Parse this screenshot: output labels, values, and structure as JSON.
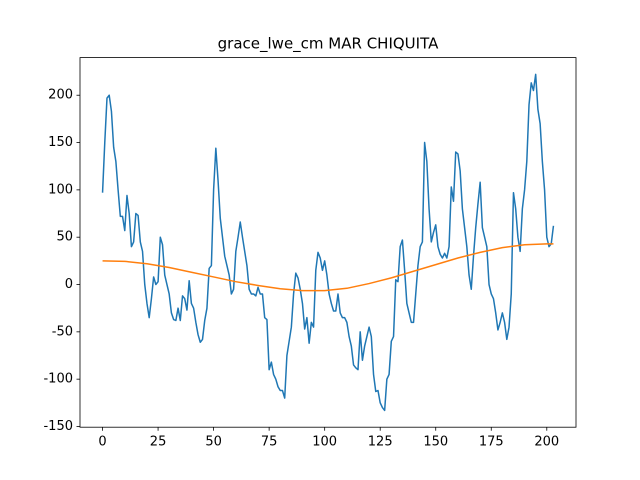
{
  "chart_data": {
    "type": "line",
    "title": "grace_lwe_cm MAR CHIQUITA",
    "xlim": [
      -10.15,
      213.15
    ],
    "ylim": [
      -150.75,
      239.75
    ],
    "xticks": [
      0,
      25,
      50,
      75,
      100,
      125,
      150,
      175,
      200
    ],
    "yticks": [
      -150,
      -100,
      -50,
      0,
      50,
      100,
      150,
      200
    ],
    "grid": false,
    "series": [
      {
        "color": "#1f77b4",
        "x": [
          0,
          1,
          2,
          3,
          4,
          5,
          6,
          7,
          8,
          9,
          10,
          11,
          12,
          13,
          14,
          15,
          16,
          17,
          18,
          19,
          20,
          21,
          22,
          23,
          24,
          25,
          26,
          27,
          28,
          29,
          30,
          31,
          32,
          33,
          34,
          35,
          36,
          37,
          38,
          39,
          40,
          41,
          42,
          43,
          44,
          45,
          46,
          47,
          48,
          49,
          50,
          51,
          52,
          53,
          54,
          55,
          56,
          57,
          58,
          59,
          60,
          61,
          62,
          63,
          64,
          65,
          66,
          67,
          68,
          69,
          70,
          71,
          72,
          73,
          74,
          75,
          76,
          77,
          78,
          79,
          80,
          81,
          82,
          83,
          84,
          85,
          86,
          87,
          88,
          89,
          90,
          91,
          92,
          93,
          94,
          95,
          96,
          97,
          98,
          99,
          100,
          101,
          102,
          103,
          104,
          105,
          106,
          107,
          108,
          109,
          110,
          111,
          112,
          113,
          114,
          115,
          116,
          117,
          118,
          119,
          120,
          121,
          122,
          123,
          124,
          125,
          126,
          127,
          128,
          129,
          130,
          131,
          132,
          133,
          134,
          135,
          136,
          137,
          138,
          139,
          140,
          141,
          142,
          143,
          144,
          145,
          146,
          147,
          148,
          149,
          150,
          151,
          152,
          153,
          154,
          155,
          156,
          157,
          158,
          159,
          160,
          161,
          162,
          163,
          164,
          165,
          166,
          167,
          168,
          169,
          170,
          171,
          172,
          173,
          174,
          175,
          176,
          177,
          178,
          179,
          180,
          181,
          182,
          183,
          184,
          185,
          186,
          187,
          188,
          189,
          190,
          191,
          192,
          193,
          194,
          195,
          196,
          197,
          198,
          199,
          200,
          201,
          202,
          203
        ],
        "values": [
          97,
          150,
          197,
          200,
          183,
          145,
          130,
          100,
          72,
          72,
          57,
          94,
          75,
          40,
          45,
          75,
          73,
          45,
          35,
          0,
          -20,
          -35,
          -15,
          8,
          0,
          3,
          50,
          42,
          10,
          0,
          -10,
          -30,
          -37,
          -38,
          -25,
          -38,
          -12,
          -15,
          -27,
          4,
          -20,
          -25,
          -40,
          -53,
          -61,
          -58,
          -38,
          -25,
          17,
          20,
          100,
          144,
          110,
          70,
          50,
          30,
          20,
          10,
          -10,
          -5,
          35,
          50,
          66,
          50,
          35,
          20,
          -5,
          -10,
          -10,
          -12,
          -3,
          -10,
          -10,
          -35,
          -37,
          -90,
          -82,
          -95,
          -100,
          -108,
          -112,
          -112,
          -120,
          -75,
          -60,
          -45,
          -10,
          12,
          7,
          -5,
          -20,
          -47,
          -35,
          -62,
          -40,
          -45,
          15,
          34,
          28,
          15,
          25,
          10,
          -10,
          -20,
          -28,
          -28,
          -10,
          -30,
          -35,
          -35,
          -40,
          -55,
          -65,
          -85,
          -88,
          -90,
          -50,
          -80,
          -65,
          -55,
          -45,
          -55,
          -95,
          -113,
          -112,
          -125,
          -130,
          -133,
          -100,
          -95,
          -60,
          -55,
          5,
          3,
          40,
          47,
          15,
          -20,
          -30,
          -40,
          -40,
          -10,
          20,
          40,
          45,
          150,
          130,
          80,
          45,
          55,
          63,
          40,
          32,
          28,
          33,
          28,
          40,
          103,
          88,
          140,
          138,
          120,
          80,
          60,
          40,
          10,
          -5,
          30,
          60,
          85,
          108,
          60,
          50,
          40,
          0,
          -10,
          -15,
          -30,
          -48,
          -40,
          -30,
          -40,
          -58,
          -45,
          -10,
          97,
          80,
          50,
          35,
          80,
          100,
          130,
          190,
          213,
          205,
          222,
          185,
          170,
          130,
          100,
          50,
          40,
          43,
          62
        ]
      },
      {
        "color": "#ff7f0e",
        "x": [
          0,
          10,
          20,
          30,
          40,
          50,
          60,
          70,
          80,
          90,
          100,
          110,
          120,
          130,
          140,
          150,
          160,
          170,
          180,
          190,
          200,
          203
        ],
        "values": [
          25,
          24.5,
          22,
          18,
          13,
          8,
          3,
          -1,
          -4.5,
          -6.5,
          -6.5,
          -4,
          1,
          7,
          14,
          21,
          28,
          34,
          39,
          42,
          43,
          43
        ]
      }
    ]
  }
}
